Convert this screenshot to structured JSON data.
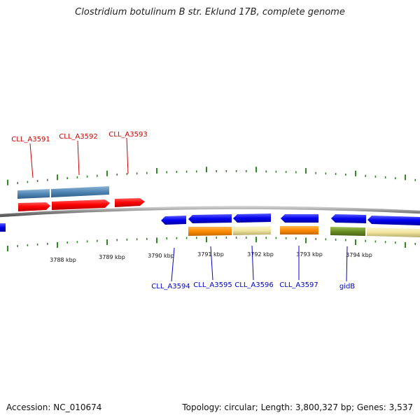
{
  "title": "Clostridium botulinum B str. Eklund 17B, complete genome",
  "footer": {
    "accession": "Accession: NC_010674",
    "summary": "Topology: circular; Length: 3,800,327 bp; Genes: 3,537"
  },
  "axis": {
    "tick_labels": [
      "3788 kbp",
      "3789 kbp",
      "3790 kbp",
      "3791 kbp",
      "3792 kbp",
      "3793 kbp",
      "3794 kbp"
    ]
  },
  "genes_top": [
    {
      "label": "CLL_A3591"
    },
    {
      "label": "CLL_A3592"
    },
    {
      "label": "CLL_A3593"
    }
  ],
  "genes_bottom": [
    {
      "label": "CLL_A3594"
    },
    {
      "label": "CLL_A3595"
    },
    {
      "label": "CLL_A3596"
    },
    {
      "label": "CLL_A3597"
    },
    {
      "label": "gidB"
    }
  ],
  "colors": {
    "forward_gene": "#ff0000",
    "reverse_gene": "#0000ee",
    "forward_cds": "#4f86b4",
    "orange_cds": "#ff8a00",
    "khaki_cds": "#f0e6a0",
    "olive_cds": "#6b8e23",
    "backbone": "#8a8a8a",
    "ticks": "#2e8b22",
    "forward_label": "#cc0000",
    "reverse_label": "#0000cc"
  }
}
